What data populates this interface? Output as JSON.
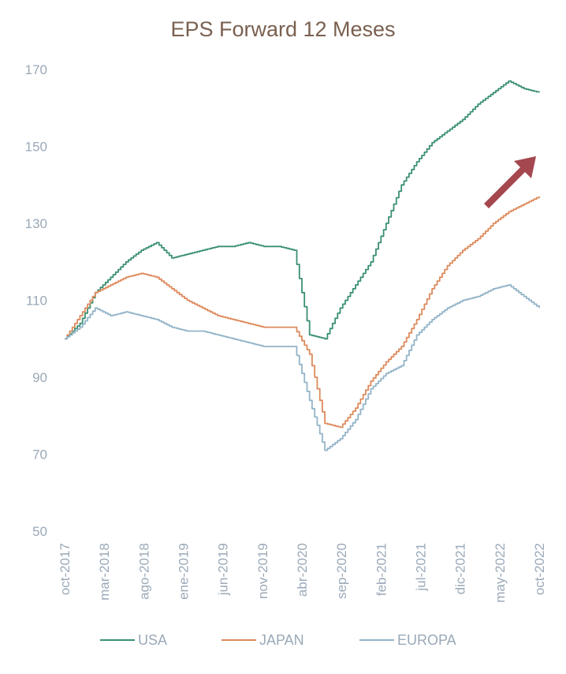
{
  "chart_data": {
    "type": "line",
    "title": "EPS Forward 12 Meses",
    "xlabel": "",
    "ylabel": "",
    "ylim": [
      50,
      170
    ],
    "yticks": [
      50,
      70,
      90,
      110,
      130,
      150,
      170
    ],
    "grid": false,
    "legend_position": "bottom",
    "x_tick_labels": [
      "oct-2017",
      "mar-2018",
      "ago-2018",
      "ene-2019",
      "jun-2019",
      "nov-2019",
      "abr-2020",
      "sep-2020",
      "feb-2021",
      "jul-2021",
      "dic-2021",
      "may-2022",
      "oct-2022"
    ],
    "x": [
      "oct-2017",
      "dic-2017",
      "feb-2018",
      "abr-2018",
      "jun-2018",
      "ago-2018",
      "oct-2018",
      "dic-2018",
      "feb-2019",
      "abr-2019",
      "jun-2019",
      "ago-2019",
      "oct-2019",
      "dic-2019",
      "feb-2020",
      "mar-2020",
      "abr-2020",
      "jun-2020",
      "ago-2020",
      "oct-2020",
      "dic-2020",
      "feb-2021",
      "abr-2021",
      "jun-2021",
      "ago-2021",
      "oct-2021",
      "dic-2021",
      "feb-2022",
      "abr-2022",
      "jun-2022",
      "ago-2022",
      "oct-2022"
    ],
    "series": [
      {
        "name": "USA",
        "color": "#3a9071",
        "values": [
          100,
          104,
          112,
          116,
          120,
          123,
          125,
          121,
          122,
          123,
          124,
          124,
          125,
          124,
          124,
          123,
          101,
          100,
          108,
          114,
          120,
          130,
          140,
          146,
          151,
          154,
          157,
          161,
          164,
          167,
          165,
          164
        ]
      },
      {
        "name": "JAPAN",
        "color": "#dd8a5c",
        "values": [
          100,
          106,
          112,
          114,
          116,
          117,
          116,
          113,
          110,
          108,
          106,
          105,
          104,
          103,
          103,
          103,
          96,
          78,
          77,
          82,
          89,
          94,
          98,
          105,
          113,
          119,
          123,
          126,
          130,
          133,
          135,
          137
        ]
      },
      {
        "name": "EUROPA",
        "color": "#93b4c8",
        "values": [
          100,
          103,
          108,
          106,
          107,
          106,
          105,
          103,
          102,
          102,
          101,
          100,
          99,
          98,
          98,
          98,
          84,
          71,
          74,
          79,
          87,
          91,
          93,
          101,
          105,
          108,
          110,
          111,
          113,
          114,
          111,
          108
        ]
      }
    ],
    "annotation": {
      "shape": "arrow",
      "color": "#a4474f"
    }
  }
}
